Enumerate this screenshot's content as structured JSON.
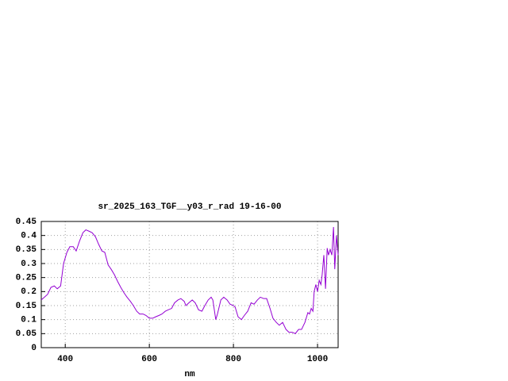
{
  "chart_data": {
    "type": "line",
    "title": "sr_2025_163_TGF__y03_r_rad 19-16-00",
    "x_label": "nm",
    "xlim": [
      343,
      1049
    ],
    "xticks": [
      400,
      600,
      800,
      1000
    ],
    "ylim": [
      0,
      0.45
    ],
    "yticks": [
      0,
      0.05,
      0.1,
      0.15,
      0.2,
      0.25,
      0.3,
      0.35,
      0.4,
      0.45
    ],
    "grid": true,
    "x": [
      343,
      358,
      366,
      374,
      381,
      389,
      396,
      404,
      411,
      419,
      426,
      434,
      442,
      449,
      457,
      464,
      472,
      479,
      487,
      494,
      502,
      509,
      517,
      525,
      532,
      540,
      547,
      555,
      562,
      570,
      577,
      585,
      592,
      600,
      608,
      615,
      623,
      630,
      638,
      645,
      653,
      660,
      668,
      675,
      683,
      687,
      694,
      702,
      709,
      717,
      725,
      732,
      740,
      747,
      751,
      758,
      762,
      770,
      777,
      785,
      792,
      800,
      804,
      811,
      819,
      826,
      834,
      842,
      849,
      857,
      864,
      872,
      879,
      887,
      894,
      902,
      909,
      917,
      925,
      932,
      940,
      947,
      955,
      962,
      970,
      977,
      981,
      985,
      989,
      992,
      996,
      1000,
      1004,
      1008,
      1011,
      1015,
      1019,
      1023,
      1026,
      1030,
      1034,
      1038,
      1041,
      1045,
      1049
    ],
    "series": [
      {
        "color": "#9400d3",
        "values": [
          0.17,
          0.19,
          0.215,
          0.22,
          0.21,
          0.22,
          0.3,
          0.34,
          0.36,
          0.36,
          0.345,
          0.38,
          0.41,
          0.42,
          0.415,
          0.41,
          0.395,
          0.37,
          0.345,
          0.34,
          0.295,
          0.28,
          0.26,
          0.235,
          0.215,
          0.195,
          0.18,
          0.165,
          0.15,
          0.13,
          0.12,
          0.12,
          0.115,
          0.105,
          0.105,
          0.11,
          0.115,
          0.12,
          0.13,
          0.135,
          0.14,
          0.16,
          0.17,
          0.175,
          0.165,
          0.15,
          0.16,
          0.17,
          0.16,
          0.135,
          0.13,
          0.15,
          0.17,
          0.18,
          0.17,
          0.1,
          0.12,
          0.17,
          0.18,
          0.17,
          0.155,
          0.15,
          0.145,
          0.11,
          0.1,
          0.115,
          0.13,
          0.16,
          0.155,
          0.17,
          0.18,
          0.175,
          0.175,
          0.14,
          0.105,
          0.09,
          0.08,
          0.09,
          0.065,
          0.055,
          0.055,
          0.05,
          0.065,
          0.065,
          0.09,
          0.125,
          0.12,
          0.14,
          0.13,
          0.2,
          0.225,
          0.2,
          0.24,
          0.225,
          0.26,
          0.33,
          0.21,
          0.355,
          0.33,
          0.35,
          0.33,
          0.43,
          0.28,
          0.4,
          0.33
        ]
      }
    ]
  }
}
